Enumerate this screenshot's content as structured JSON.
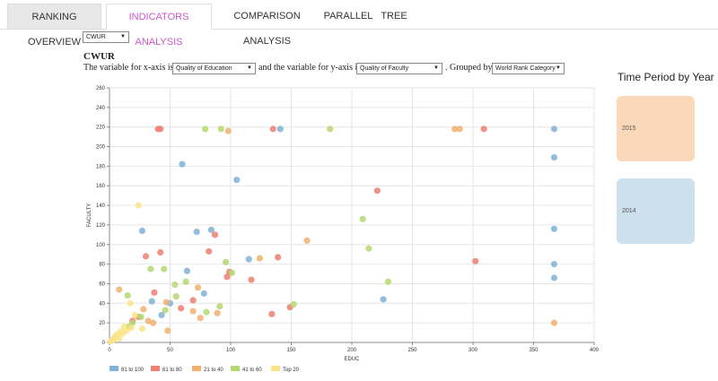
{
  "tabs": [
    "RANKING OVERVIEW",
    "INDICATORS ANALYSIS",
    "COMPARISON ANALYSIS",
    "PARALLEL",
    "TREE"
  ],
  "dataset_select": "CWUR",
  "dataset_title": "CWUR",
  "sentence": {
    "part1": "The variable for x-axis is",
    "part2": "and the variable for y-axis is",
    "part3": ". Grouped by",
    "x_select": "Quality of Education",
    "y_select": "Quality of Faculty",
    "group_select": "World Rank Category"
  },
  "time_period": {
    "title": "Time Period by Year",
    "periods": [
      {
        "label": "2015",
        "color": "#f9d9b9"
      },
      {
        "label": "2014",
        "color": "#cde0ee"
      }
    ]
  },
  "chart_data": {
    "type": "scatter",
    "xlabel": "EDUC",
    "ylabel": "FACULTY",
    "xlim": [
      0,
      400
    ],
    "ylim": [
      0,
      260
    ],
    "xticks": [
      0,
      50,
      100,
      150,
      200,
      250,
      300,
      350,
      400
    ],
    "yticks": [
      0,
      20,
      40,
      60,
      80,
      100,
      120,
      140,
      160,
      180,
      200,
      220,
      240,
      260
    ],
    "grid": true,
    "legend_position": "bottom-left",
    "series": [
      {
        "name": "81 to 100",
        "color": "#7fb2d6",
        "points": [
          [
            60,
            182
          ],
          [
            105,
            166
          ],
          [
            27,
            114
          ],
          [
            72,
            113
          ],
          [
            84,
            115
          ],
          [
            64,
            73
          ],
          [
            115,
            85
          ],
          [
            35,
            42
          ],
          [
            50,
            40
          ],
          [
            78,
            50
          ],
          [
            43,
            28
          ],
          [
            141,
            218
          ],
          [
            367,
            218
          ],
          [
            367,
            189
          ],
          [
            367,
            116
          ],
          [
            367,
            80
          ],
          [
            367,
            66
          ],
          [
            226,
            44
          ]
        ]
      },
      {
        "name": "61 to 80",
        "color": "#ee7f72",
        "points": [
          [
            40,
            218
          ],
          [
            42,
            218
          ],
          [
            135,
            218
          ],
          [
            309,
            218
          ],
          [
            221,
            155
          ],
          [
            87,
            110
          ],
          [
            82,
            93
          ],
          [
            30,
            88
          ],
          [
            42,
            92
          ],
          [
            139,
            87
          ],
          [
            97,
            67
          ],
          [
            99,
            72
          ],
          [
            117,
            64
          ],
          [
            37,
            51
          ],
          [
            59,
            35
          ],
          [
            69,
            43
          ],
          [
            149,
            36
          ],
          [
            134,
            29
          ],
          [
            302,
            83
          ],
          [
            24,
            26
          ],
          [
            19,
            22
          ]
        ]
      },
      {
        "name": "21 to 40",
        "color": "#f0b070",
        "points": [
          [
            98,
            216
          ],
          [
            285,
            218
          ],
          [
            289,
            218
          ],
          [
            163,
            104
          ],
          [
            124,
            86
          ],
          [
            8,
            54
          ],
          [
            73,
            56
          ],
          [
            47,
            41
          ],
          [
            69,
            32
          ],
          [
            89,
            30
          ],
          [
            75,
            25
          ],
          [
            28,
            34
          ],
          [
            32,
            22
          ],
          [
            36,
            20
          ],
          [
            48,
            12
          ],
          [
            367,
            20
          ]
        ]
      },
      {
        "name": "41 to 60",
        "color": "#b5d870",
        "points": [
          [
            79,
            218
          ],
          [
            92,
            218
          ],
          [
            182,
            218
          ],
          [
            209,
            126
          ],
          [
            214,
            96
          ],
          [
            96,
            82
          ],
          [
            45,
            75
          ],
          [
            34,
            75
          ],
          [
            101,
            71
          ],
          [
            230,
            62
          ],
          [
            63,
            62
          ],
          [
            54,
            59
          ],
          [
            15,
            48
          ],
          [
            55,
            47
          ],
          [
            152,
            39
          ],
          [
            91,
            37
          ],
          [
            80,
            31
          ],
          [
            46,
            33
          ],
          [
            26,
            26
          ],
          [
            19,
            20
          ],
          [
            16,
            16
          ]
        ]
      },
      {
        "name": "Top 20",
        "color": "#f9e48a",
        "points": [
          [
            24,
            140
          ],
          [
            17,
            40
          ],
          [
            21,
            28
          ],
          [
            27,
            14
          ],
          [
            12,
            16
          ],
          [
            9,
            11
          ],
          [
            6,
            8
          ],
          [
            4,
            5
          ],
          [
            3,
            3
          ],
          [
            2,
            2
          ],
          [
            1,
            1
          ],
          [
            5,
            6
          ],
          [
            8,
            4
          ],
          [
            11,
            9
          ],
          [
            14,
            12
          ],
          [
            18,
            15
          ]
        ]
      }
    ]
  }
}
